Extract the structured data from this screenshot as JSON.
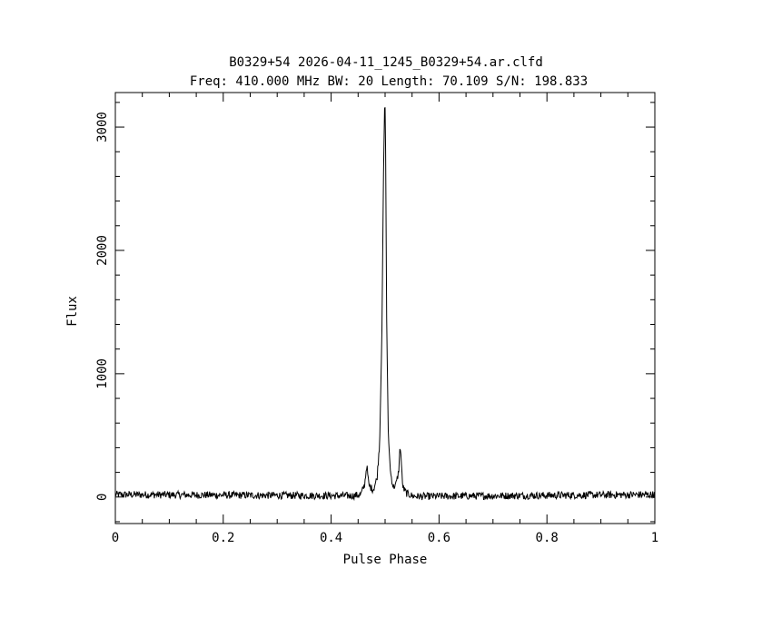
{
  "chart_data": {
    "type": "line",
    "title": "B0329+54 2026-04-11_1245_B0329+54.ar.clfd",
    "subtitle": "Freq: 410.000 MHz BW: 20 Length: 70.109 S/N: 198.833",
    "xlabel": "Pulse Phase",
    "ylabel": "Flux",
    "xlim": [
      0,
      1
    ],
    "ylim": [
      -215,
      3280
    ],
    "x_ticks": [
      0,
      0.2,
      0.4,
      0.6,
      0.8,
      1
    ],
    "x_tick_labels": [
      "0",
      "0.2",
      "0.4",
      "0.6",
      "0.8",
      "1"
    ],
    "y_ticks": [
      0,
      1000,
      2000,
      3000
    ],
    "y_tick_labels": [
      "0",
      "1000",
      "2000",
      "3000"
    ],
    "grid": false,
    "legend": "none",
    "series": [
      {
        "baseline": 0,
        "noise_amplitude": 30,
        "x": [
          0,
          0.44,
          0.455,
          0.462,
          0.466,
          0.47,
          0.478,
          0.485,
          0.49,
          0.494,
          0.497,
          0.499,
          0.5,
          0.501,
          0.503,
          0.506,
          0.51,
          0.515,
          0.52,
          0.525,
          0.528,
          0.53,
          0.532,
          0.535,
          0.54,
          0.55,
          0.56,
          1
        ],
        "values": [
          20,
          10,
          20,
          100,
          260,
          90,
          60,
          150,
          450,
          1300,
          2600,
          3150,
          3160,
          2800,
          1400,
          500,
          200,
          80,
          100,
          200,
          420,
          300,
          110,
          60,
          30,
          10,
          5,
          20
        ]
      }
    ]
  }
}
